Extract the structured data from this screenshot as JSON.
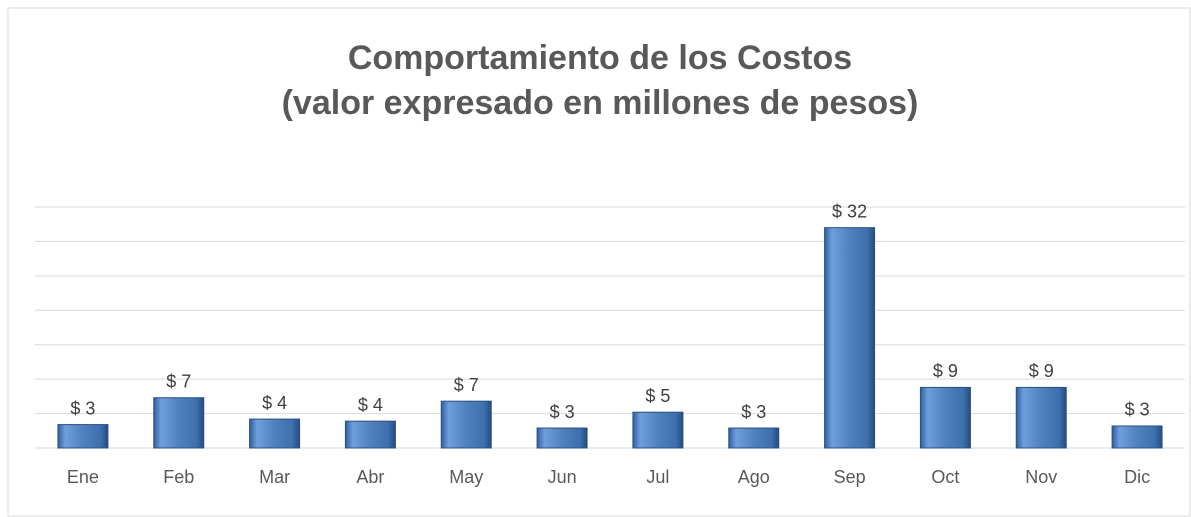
{
  "chart_data": {
    "type": "bar",
    "title": "Comportamiento de los Costos",
    "subtitle": "(valor expresado en millones de pesos)",
    "categories": [
      "Ene",
      "Feb",
      "Mar",
      "Abr",
      "May",
      "Jun",
      "Jul",
      "Ago",
      "Sep",
      "Oct",
      "Nov",
      "Dic"
    ],
    "values": [
      3.4,
      7.3,
      4.2,
      3.9,
      6.8,
      2.9,
      5.2,
      2.9,
      32,
      8.8,
      8.8,
      3.2
    ],
    "value_labels": [
      "$ 3",
      "$ 7",
      "$ 4",
      "$ 4",
      "$ 7",
      "$ 3",
      "$ 5",
      "$ 3",
      "$ 32",
      "$ 9",
      "$ 9",
      "$ 3"
    ],
    "color": "#4f81bd",
    "ylim": [
      0,
      35
    ],
    "yticks": [
      0,
      5,
      10,
      15,
      20,
      25,
      30,
      35
    ],
    "grid": true
  }
}
